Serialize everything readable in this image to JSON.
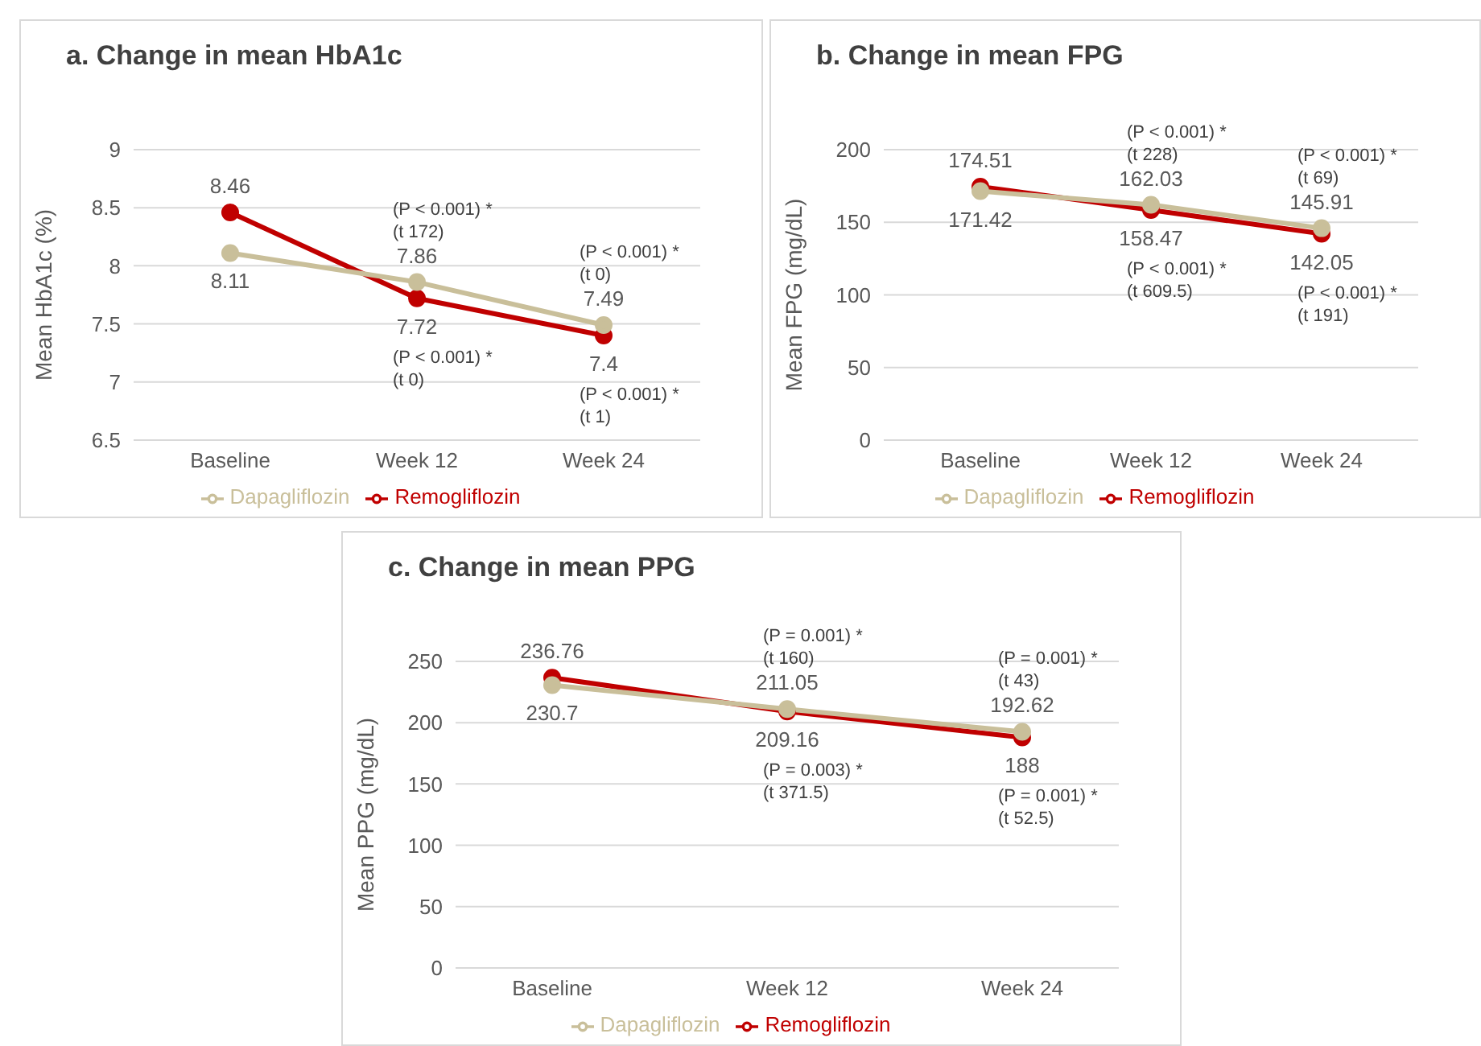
{
  "chart_data": [
    {
      "type": "line",
      "title": "a. Change in mean HbA1c",
      "ylabel": "Mean HbA1c (%)",
      "categories": [
        "Baseline",
        "Week 12",
        "Week 24"
      ],
      "series": [
        {
          "name": "Remogliflozin",
          "color": "#c00000",
          "values": [
            8.46,
            7.72,
            7.4
          ]
        },
        {
          "name": "Dapagliflozin",
          "color": "#c9bf9a",
          "values": [
            8.11,
            7.86,
            7.49
          ]
        }
      ],
      "ylim": [
        6.5,
        9
      ],
      "yticks": [
        6.5,
        7,
        7.5,
        8,
        8.5,
        9
      ],
      "grid": "y",
      "legend": "bottom",
      "marker": "circle",
      "line_style": "solid",
      "data_labels": true,
      "annotations": [
        {
          "text": "(P < 0.001) *\n(t 172)",
          "x": "Week 12",
          "y": 7.86
        },
        {
          "text": "(P < 0.001) *\n(t 0)",
          "x": "Week 12",
          "y": 7.72
        },
        {
          "text": "(P < 0.001) *\n(t 0)",
          "x": "Week 24",
          "y": 7.49
        },
        {
          "text": "(P < 0.001) *\n(t 1)",
          "x": "Week 24",
          "y": 7.4
        }
      ]
    },
    {
      "type": "line",
      "title": "b. Change in mean FPG",
      "ylabel": "Mean FPG (mg/dL)",
      "categories": [
        "Baseline",
        "Week 12",
        "Week 24"
      ],
      "series": [
        {
          "name": "Remogliflozin",
          "color": "#c00000",
          "values": [
            174.51,
            158.47,
            142.05
          ]
        },
        {
          "name": "Dapagliflozin",
          "color": "#c9bf9a",
          "values": [
            171.42,
            162.03,
            145.91
          ]
        }
      ],
      "ylim": [
        0,
        200
      ],
      "yticks": [
        0,
        50,
        100,
        150,
        200
      ],
      "grid": "y",
      "legend": "bottom",
      "marker": "circle",
      "line_style": "solid",
      "data_labels": true,
      "annotations": [
        {
          "text": "(P < 0.001) *\n(t 228)",
          "x": "Week 12",
          "y": 162.03
        },
        {
          "text": "(P < 0.001) *\n(t 609.5)",
          "x": "Week 12",
          "y": 158.47
        },
        {
          "text": "(P < 0.001) *\n(t 69)",
          "x": "Week 24",
          "y": 145.91
        },
        {
          "text": "(P < 0.001) *\n(t 191)",
          "x": "Week 24",
          "y": 142.05
        }
      ]
    },
    {
      "type": "line",
      "title": "c. Change in mean PPG",
      "ylabel": "Mean PPG (mg/dL)",
      "categories": [
        "Baseline",
        "Week 12",
        "Week 24"
      ],
      "series": [
        {
          "name": "Remogliflozin",
          "color": "#c00000",
          "values": [
            236.76,
            209.16,
            188
          ]
        },
        {
          "name": "Dapagliflozin",
          "color": "#c9bf9a",
          "values": [
            230.7,
            211.05,
            192.62
          ]
        }
      ],
      "ylim": [
        0,
        250
      ],
      "yticks": [
        0,
        50,
        100,
        150,
        200,
        250
      ],
      "grid": "y",
      "legend": "bottom",
      "marker": "circle",
      "line_style": "solid",
      "data_labels": true,
      "annotations": [
        {
          "text": "(P = 0.001) *\n(t 160)",
          "x": "Week 12",
          "y": 211.05
        },
        {
          "text": "(P = 0.003) *\n(t 371.5)",
          "x": "Week 12",
          "y": 209.16
        },
        {
          "text": "(P = 0.001) *\n(t 43)",
          "x": "Week 24",
          "y": 192.62
        },
        {
          "text": "(P = 0.001) *\n(t 52.5)",
          "x": "Week 24",
          "y": 188
        }
      ]
    }
  ]
}
